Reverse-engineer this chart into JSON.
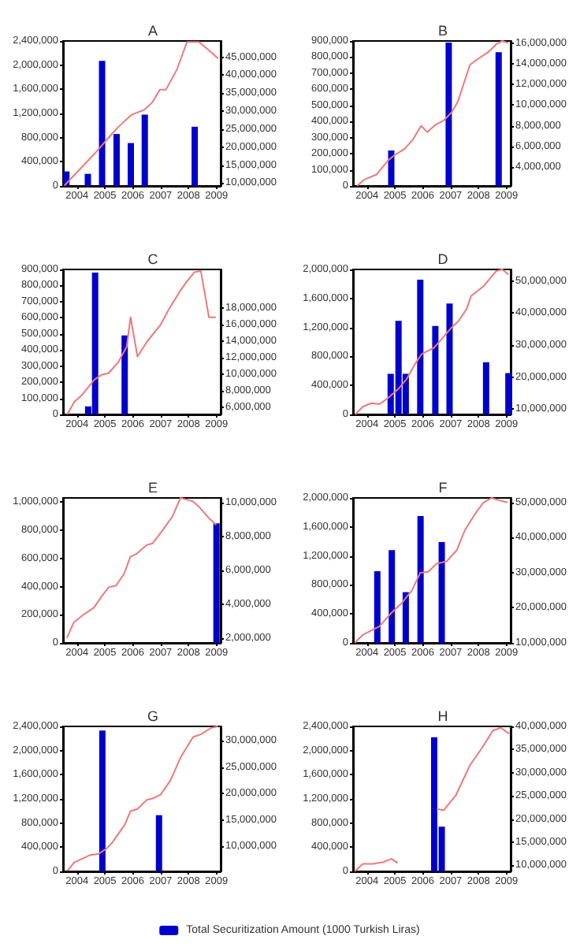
{
  "chart_data": [
    {
      "type": "bar",
      "title": "A",
      "xlim": [
        2003.5,
        2009.15
      ],
      "xticks": [
        2004,
        2005,
        2006,
        2007,
        2008,
        2009
      ],
      "ylim": [
        0,
        2400000
      ],
      "yticks": [
        {
          "value": 0,
          "label": "0"
        },
        {
          "value": 400000,
          "label": "400,000"
        },
        {
          "value": 800000,
          "label": "800,000"
        },
        {
          "value": 1200000,
          "label": "1,200,000"
        },
        {
          "value": 1600000,
          "label": "1,600,000"
        },
        {
          "value": 2000000,
          "label": "2,000,000"
        },
        {
          "value": 2400000,
          "label": "2,400,000"
        }
      ],
      "y2lim": [
        9200000,
        49500000
      ],
      "y2ticks": [
        {
          "value": 10000000,
          "label": "10,000,000"
        },
        {
          "value": 15000000,
          "label": "15,000,000"
        },
        {
          "value": 20000000,
          "label": "20,000,000"
        },
        {
          "value": 25000000,
          "label": "25,000,000"
        },
        {
          "value": 30000000,
          "label": "30,000,000"
        },
        {
          "value": 35000000,
          "label": "35,000,000"
        },
        {
          "value": 40000000,
          "label": "40,000,000"
        },
        {
          "value": 45000000,
          "label": "45,000,000"
        }
      ],
      "marker": "none",
      "series": [
        {
          "color": "#0000cc",
          "x": [
            2003.62,
            2004.39,
            2004.9,
            2005.42,
            2005.93,
            2006.43,
            2008.22
          ],
          "values": [
            240000,
            200000,
            2070000,
            860000,
            710000,
            1180000,
            980000
          ]
        },
        {
          "type": "line",
          "axis": "y2",
          "color": "#f07878",
          "x": [
            2003.55,
            2004.17,
            2004.68,
            2005.12,
            2005.48,
            2005.96,
            2006.42,
            2006.71,
            2006.97,
            2007.19,
            2007.58,
            2007.94,
            2008.38,
            2008.74,
            2009.06
          ],
          "values": [
            9300000,
            14400000,
            18600000,
            22500000,
            25600000,
            29000000,
            30400000,
            32500000,
            36000000,
            36000000,
            41500000,
            49200000,
            49200000,
            46800000,
            44600000
          ]
        }
      ]
    },
    {
      "type": "bar",
      "title": "B",
      "xlim": [
        2003.5,
        2009.15
      ],
      "xticks": [
        2004,
        2005,
        2006,
        2007,
        2008,
        2009
      ],
      "ylim": [
        0,
        900000
      ],
      "yticks": [
        {
          "value": 0,
          "label": "0"
        },
        {
          "value": 100000,
          "label": "100,000"
        },
        {
          "value": 200000,
          "label": "200,000"
        },
        {
          "value": 300000,
          "label": "300,000"
        },
        {
          "value": 400000,
          "label": "400,000"
        },
        {
          "value": 500000,
          "label": "500,000"
        },
        {
          "value": 600000,
          "label": "600,000"
        },
        {
          "value": 700000,
          "label": "700,000"
        },
        {
          "value": 800000,
          "label": "800,000"
        },
        {
          "value": 900000,
          "label": "900,000"
        }
      ],
      "y2lim": [
        2200000,
        16200000
      ],
      "y2ticks": [
        {
          "value": 4000000,
          "label": "4,000,000"
        },
        {
          "value": 6000000,
          "label": "6,000,000"
        },
        {
          "value": 8000000,
          "label": "8,000,000"
        },
        {
          "value": 10000000,
          "label": "10,000,000"
        },
        {
          "value": 12000000,
          "label": "12,000,000"
        },
        {
          "value": 14000000,
          "label": "14,000,000"
        },
        {
          "value": 16000000,
          "label": "16,000,000"
        }
      ],
      "marker": "none",
      "series": [
        {
          "color": "#0000cc",
          "x": [
            2004.87,
            2006.93,
            2008.72
          ],
          "values": [
            220000,
            890000,
            830000
          ]
        },
        {
          "type": "line",
          "axis": "y2",
          "color": "#f07878",
          "x": [
            2003.65,
            2003.9,
            2004.34,
            2004.77,
            2005.0,
            2005.36,
            2005.65,
            2005.94,
            2006.16,
            2006.45,
            2006.74,
            2007.03,
            2007.25,
            2007.69,
            2008.05,
            2008.34,
            2008.64,
            2008.85,
            2009.07
          ],
          "values": [
            2200000,
            2800000,
            3300000,
            4700000,
            5200000,
            5800000,
            6700000,
            8000000,
            7400000,
            8100000,
            8500000,
            9300000,
            10300000,
            13900000,
            14600000,
            15100000,
            15900000,
            16200000,
            16000000
          ]
        }
      ]
    },
    {
      "type": "bar",
      "title": "C",
      "xlim": [
        2003.5,
        2009.15
      ],
      "xticks": [
        2004,
        2005,
        2006,
        2007,
        2008,
        2009
      ],
      "ylim": [
        0,
        900000
      ],
      "yticks": [
        {
          "value": 0,
          "label": "0"
        },
        {
          "value": 100000,
          "label": "100,000"
        },
        {
          "value": 200000,
          "label": "200,000"
        },
        {
          "value": 300000,
          "label": "300,000"
        },
        {
          "value": 400000,
          "label": "400,000"
        },
        {
          "value": 500000,
          "label": "500,000"
        },
        {
          "value": 600000,
          "label": "600,000"
        },
        {
          "value": 700000,
          "label": "700,000"
        },
        {
          "value": 800000,
          "label": "800,000"
        },
        {
          "value": 900000,
          "label": "900,000"
        }
      ],
      "y2lim": [
        5100000,
        22700000
      ],
      "y2ticks": [
        {
          "value": 6000000,
          "label": "6,000,000"
        },
        {
          "value": 8000000,
          "label": "8,000,000"
        },
        {
          "value": 10000000,
          "label": "10,000,000"
        },
        {
          "value": 12000000,
          "label": "12,000,000"
        },
        {
          "value": 14000000,
          "label": "14,000,000"
        },
        {
          "value": 16000000,
          "label": "16,000,000"
        },
        {
          "value": 18000000,
          "label": "18,000,000"
        }
      ],
      "marker": "none",
      "series": [
        {
          "color": "#0000cc",
          "x": [
            2004.4,
            2004.65,
            2005.71
          ],
          "values": [
            50000,
            880000,
            490000
          ]
        },
        {
          "type": "line",
          "axis": "y2",
          "color": "#f07878",
          "x": [
            2003.65,
            2003.9,
            2004.19,
            2004.62,
            2004.87,
            2005.13,
            2005.49,
            2005.78,
            2005.92,
            2006.17,
            2006.5,
            2007.0,
            2007.28,
            2007.72,
            2007.93,
            2008.22,
            2008.44,
            2008.73,
            2008.98
          ],
          "values": [
            5100000,
            6600000,
            7500000,
            9300000,
            9900000,
            10100000,
            11500000,
            13300000,
            16900000,
            12100000,
            13900000,
            16000000,
            17800000,
            20200000,
            21200000,
            22400000,
            22500000,
            16900000,
            16900000
          ]
        }
      ]
    },
    {
      "type": "bar",
      "title": "D",
      "xlim": [
        2003.5,
        2009.15
      ],
      "xticks": [
        2004,
        2005,
        2006,
        2007,
        2008,
        2009
      ],
      "ylim": [
        0,
        2000000
      ],
      "yticks": [
        {
          "value": 0,
          "label": "0"
        },
        {
          "value": 400000,
          "label": "400,000"
        },
        {
          "value": 800000,
          "label": "800,000"
        },
        {
          "value": 1200000,
          "label": "1,200,000"
        },
        {
          "value": 1600000,
          "label": "1,600,000"
        },
        {
          "value": 2000000,
          "label": "2,000,000"
        }
      ],
      "y2lim": [
        8400000,
        53600000
      ],
      "y2ticks": [
        {
          "value": 10000000,
          "label": "10,000,000"
        },
        {
          "value": 20000000,
          "label": "20,000,000"
        },
        {
          "value": 30000000,
          "label": "30,000,000"
        },
        {
          "value": 40000000,
          "label": "40,000,000"
        },
        {
          "value": 50000000,
          "label": "50,000,000"
        }
      ],
      "marker": "none",
      "series": [
        {
          "color": "#0000cc",
          "x": [
            2004.85,
            2005.13,
            2005.39,
            2005.91,
            2006.45,
            2006.96,
            2008.27,
            2009.07
          ],
          "values": [
            560000,
            1290000,
            560000,
            1860000,
            1220000,
            1530000,
            720000,
            570000
          ]
        },
        {
          "type": "line",
          "axis": "y2",
          "color": "#f07878",
          "x": [
            2003.58,
            2003.85,
            2004.15,
            2004.45,
            2004.75,
            2005.12,
            2005.42,
            2005.72,
            2005.97,
            2006.39,
            2006.69,
            2006.99,
            2007.28,
            2007.58,
            2007.73,
            2008.18,
            2008.63,
            2008.85,
            2009.07
          ],
          "values": [
            8400000,
            10800000,
            11900000,
            11600000,
            13500000,
            16300000,
            19400000,
            24100000,
            27300000,
            29100000,
            32000000,
            35100000,
            37500000,
            41400000,
            45300000,
            48400000,
            53100000,
            53600000,
            52000000
          ]
        }
      ]
    },
    {
      "type": "bar",
      "title": "E",
      "xlim": [
        2003.5,
        2009.15
      ],
      "xticks": [
        2004,
        2005,
        2006,
        2007,
        2008,
        2009
      ],
      "ylim": [
        0,
        1030000
      ],
      "yticks": [
        {
          "value": 0,
          "label": "0"
        },
        {
          "value": 200000,
          "label": "200,000"
        },
        {
          "value": 400000,
          "label": "400,000"
        },
        {
          "value": 600000,
          "label": "600,000"
        },
        {
          "value": 800000,
          "label": "800,000"
        },
        {
          "value": 1000000,
          "label": "1,000,000"
        }
      ],
      "y2lim": [
        1700000,
        10300000
      ],
      "y2ticks": [
        {
          "value": 2000000,
          "label": "2,000,000"
        },
        {
          "value": 4000000,
          "label": "4,000,000"
        },
        {
          "value": 6000000,
          "label": "6,000,000"
        },
        {
          "value": 8000000,
          "label": "8,000,000"
        },
        {
          "value": 10000000,
          "label": "10,000,000"
        }
      ],
      "marker": "none",
      "series": [
        {
          "color": "#0000cc",
          "x": [
            2009.0
          ],
          "values": [
            850000
          ]
        },
        {
          "type": "line",
          "axis": "y2",
          "color": "#f07878",
          "x": [
            2003.64,
            2003.88,
            2004.17,
            2004.61,
            2004.9,
            2005.14,
            2005.4,
            2005.69,
            2005.91,
            2006.15,
            2006.49,
            2006.7,
            2006.99,
            2007.42,
            2007.71,
            2007.93,
            2008.15,
            2008.36,
            2008.73,
            2008.99
          ],
          "values": [
            2000000,
            2900000,
            3300000,
            3800000,
            4500000,
            5000000,
            5100000,
            5800000,
            6800000,
            7000000,
            7500000,
            7600000,
            8200000,
            9200000,
            10300000,
            10200000,
            10100000,
            9800000,
            9100000,
            8700000
          ]
        }
      ]
    },
    {
      "type": "bar",
      "title": "F",
      "xlim": [
        2003.5,
        2009.15
      ],
      "xticks": [
        2004,
        2005,
        2006,
        2007,
        2008,
        2009
      ],
      "ylim": [
        0,
        2000000
      ],
      "yticks": [
        {
          "value": 0,
          "label": "0"
        },
        {
          "value": 400000,
          "label": "400,000"
        },
        {
          "value": 800000,
          "label": "800,000"
        },
        {
          "value": 1200000,
          "label": "1,200,000"
        },
        {
          "value": 1600000,
          "label": "1,600,000"
        },
        {
          "value": 2000000,
          "label": "2,000,000"
        }
      ],
      "y2lim": [
        9900000,
        51300000
      ],
      "y2ticks": [
        {
          "value": 10000000,
          "label": "10,000,000"
        },
        {
          "value": 20000000,
          "label": "20,000,000"
        },
        {
          "value": 30000000,
          "label": "30,000,000"
        },
        {
          "value": 40000000,
          "label": "40,000,000"
        },
        {
          "value": 50000000,
          "label": "50,000,000"
        }
      ],
      "marker": "none",
      "series": [
        {
          "color": "#0000cc",
          "x": [
            2004.37,
            2004.89,
            2005.39,
            2005.92,
            2006.68
          ],
          "values": [
            990000,
            1280000,
            700000,
            1750000,
            1390000
          ]
        },
        {
          "type": "line",
          "axis": "y2",
          "color": "#f07878",
          "x": [
            2003.56,
            2003.85,
            2004.15,
            2004.44,
            2004.88,
            2005.25,
            2005.61,
            2005.91,
            2006.2,
            2006.49,
            2006.86,
            2007.22,
            2007.51,
            2007.87,
            2008.17,
            2008.46,
            2008.75,
            2009.04
          ],
          "values": [
            9900000,
            12200000,
            13400000,
            14600000,
            18500000,
            21300000,
            24900000,
            29900000,
            30200000,
            32500000,
            33200000,
            36400000,
            42100000,
            46700000,
            49900000,
            51300000,
            50600000,
            50000000
          ]
        }
      ]
    },
    {
      "type": "bar",
      "title": "G",
      "xlim": [
        2003.5,
        2009.15
      ],
      "xticks": [
        2004,
        2005,
        2006,
        2007,
        2008,
        2009
      ],
      "ylim": [
        0,
        2400000
      ],
      "yticks": [
        {
          "value": 0,
          "label": "0"
        },
        {
          "value": 400000,
          "label": "400,000"
        },
        {
          "value": 800000,
          "label": "800,000"
        },
        {
          "value": 1200000,
          "label": "1,200,000"
        },
        {
          "value": 1600000,
          "label": "1,600,000"
        },
        {
          "value": 2000000,
          "label": "2,000,000"
        },
        {
          "value": 2400000,
          "label": "2,400,000"
        }
      ],
      "y2lim": [
        5300000,
        32700000
      ],
      "y2ticks": [
        {
          "value": 10000000,
          "label": "10,000,000"
        },
        {
          "value": 15000000,
          "label": "15,000,000"
        },
        {
          "value": 20000000,
          "label": "20,000,000"
        },
        {
          "value": 25000000,
          "label": "25,000,000"
        },
        {
          "value": 30000000,
          "label": "30,000,000"
        }
      ],
      "marker": "none",
      "series": [
        {
          "color": "#0000cc",
          "x": [
            2004.91,
            2006.94
          ],
          "values": [
            2330000,
            930000
          ]
        },
        {
          "type": "line",
          "axis": "y2",
          "color": "#f07878",
          "x": [
            2003.65,
            2003.9,
            2004.19,
            2004.48,
            2004.77,
            2005.06,
            2005.27,
            2005.71,
            2005.92,
            2006.17,
            2006.5,
            2006.72,
            2007.0,
            2007.36,
            2007.72,
            2008.16,
            2008.44,
            2008.8,
            2009.05
          ],
          "values": [
            5400000,
            7000000,
            7700000,
            8400000,
            8600000,
            9600000,
            10800000,
            14100000,
            16700000,
            17100000,
            18800000,
            19100000,
            19800000,
            22600000,
            26900000,
            30700000,
            31200000,
            32400000,
            32700000
          ]
        }
      ]
    },
    {
      "type": "bar",
      "title": "H",
      "xlim": [
        2003.5,
        2009.15
      ],
      "xticks": [
        2004,
        2005,
        2006,
        2007,
        2008,
        2009
      ],
      "ylim": [
        0,
        2400000
      ],
      "yticks": [
        {
          "value": 0,
          "label": "0"
        },
        {
          "value": 400000,
          "label": "400,000"
        },
        {
          "value": 800000,
          "label": "800,000"
        },
        {
          "value": 1200000,
          "label": "1,200,000"
        },
        {
          "value": 1600000,
          "label": "1,600,000"
        },
        {
          "value": 2000000,
          "label": "2,000,000"
        },
        {
          "value": 2400000,
          "label": "2,400,000"
        }
      ],
      "y2lim": [
        8700000,
        40000000
      ],
      "y2ticks": [
        {
          "value": 10000000,
          "label": "10,000,000"
        },
        {
          "value": 15000000,
          "label": "15,000,000"
        },
        {
          "value": 20000000,
          "label": "20,000,000"
        },
        {
          "value": 25000000,
          "label": "25,000,000"
        },
        {
          "value": 30000000,
          "label": "30,000,000"
        },
        {
          "value": 35000000,
          "label": "35,000,000"
        },
        {
          "value": 40000000,
          "label": "40,000,000"
        }
      ],
      "marker": "none",
      "legend": "bottom",
      "series": [
        {
          "name": "Total Securitization Amount (1000 Turkish Liras)",
          "color": "#0000cc",
          "x": [
            2006.41,
            2006.68
          ],
          "values": [
            2220000,
            740000
          ]
        },
        {
          "type": "line",
          "axis": "y2",
          "color": "#f07878",
          "x": [
            2003.56,
            2003.85,
            2004.22,
            2004.58,
            2004.88,
            2005.1,
            2005.8,
            2006.5,
            2006.75,
            2007.19,
            2007.7,
            2008.14,
            2008.51,
            2008.8,
            2009.1
          ],
          "values": [
            8700000,
            10300000,
            10300000,
            10700000,
            11400000,
            10500000,
            null,
            22200000,
            21900000,
            25200000,
            31700000,
            35500000,
            39100000,
            39700000,
            38400000
          ]
        }
      ]
    }
  ]
}
